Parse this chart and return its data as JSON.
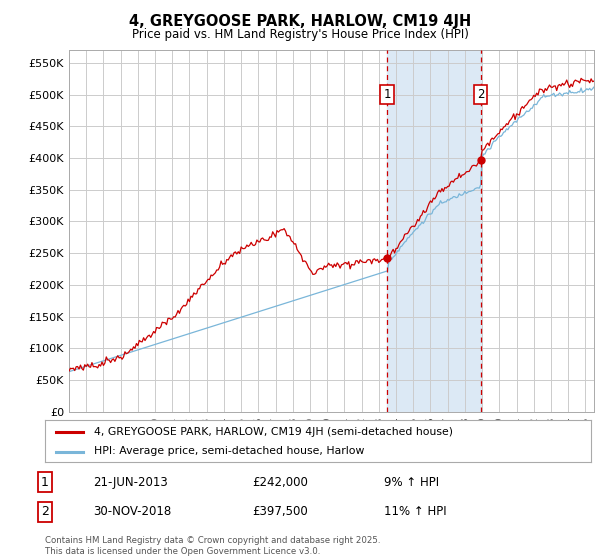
{
  "title": "4, GREYGOOSE PARK, HARLOW, CM19 4JH",
  "subtitle": "Price paid vs. HM Land Registry's House Price Index (HPI)",
  "ylabel_ticks": [
    "£0",
    "£50K",
    "£100K",
    "£150K",
    "£200K",
    "£250K",
    "£300K",
    "£350K",
    "£400K",
    "£450K",
    "£500K",
    "£550K"
  ],
  "ytick_values": [
    0,
    50000,
    100000,
    150000,
    200000,
    250000,
    300000,
    350000,
    400000,
    450000,
    500000,
    550000
  ],
  "xmin": 1995.0,
  "xmax": 2025.5,
  "ymin": 0,
  "ymax": 570000,
  "vline1_x": 2013.47,
  "vline2_x": 2018.92,
  "shade_color": "#dce9f5",
  "vline_color": "#cc0000",
  "red_line_color": "#cc0000",
  "blue_line_color": "#7ab6d9",
  "legend_line1": "4, GREYGOOSE PARK, HARLOW, CM19 4JH (semi-detached house)",
  "legend_line2": "HPI: Average price, semi-detached house, Harlow",
  "annot1_date": "21-JUN-2013",
  "annot1_price": "£242,000",
  "annot1_hpi": "9% ↑ HPI",
  "annot2_date": "30-NOV-2018",
  "annot2_price": "£397,500",
  "annot2_hpi": "11% ↑ HPI",
  "footer": "Contains HM Land Registry data © Crown copyright and database right 2025.\nThis data is licensed under the Open Government Licence v3.0.",
  "background_color": "#ffffff",
  "grid_color": "#cccccc"
}
